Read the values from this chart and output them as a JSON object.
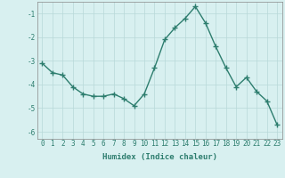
{
  "x": [
    0,
    1,
    2,
    3,
    4,
    5,
    6,
    7,
    8,
    9,
    10,
    11,
    12,
    13,
    14,
    15,
    16,
    17,
    18,
    19,
    20,
    21,
    22,
    23
  ],
  "y": [
    -3.1,
    -3.5,
    -3.6,
    -4.1,
    -4.4,
    -4.5,
    -4.5,
    -4.4,
    -4.6,
    -4.9,
    -4.4,
    -3.3,
    -2.1,
    -1.6,
    -1.2,
    -0.7,
    -1.4,
    -2.4,
    -3.3,
    -4.1,
    -3.7,
    -4.3,
    -4.7,
    -5.7
  ],
  "line_color": "#2d7d6e",
  "marker": "+",
  "marker_size": 4,
  "background_color": "#d8f0f0",
  "grid_color": "#b8d8d8",
  "tick_color": "#2d7d6e",
  "xlabel": "Humidex (Indice chaleur)",
  "xlim": [
    -0.5,
    23.5
  ],
  "ylim": [
    -6.3,
    -0.5
  ],
  "yticks": [
    -6,
    -5,
    -4,
    -3,
    -2,
    -1
  ],
  "xticks": [
    0,
    1,
    2,
    3,
    4,
    5,
    6,
    7,
    8,
    9,
    10,
    11,
    12,
    13,
    14,
    15,
    16,
    17,
    18,
    19,
    20,
    21,
    22,
    23
  ],
  "xlabel_fontsize": 6.5,
  "tick_fontsize": 5.5,
  "line_width": 1.0,
  "markeredgewidth": 1.0
}
